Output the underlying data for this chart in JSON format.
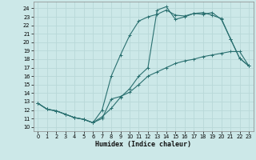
{
  "xlabel": "Humidex (Indice chaleur)",
  "bg_color": "#cce8e8",
  "grid_color": "#b8d8d8",
  "line_color": "#2a7070",
  "xlim": [
    -0.5,
    23.5
  ],
  "ylim": [
    9.5,
    24.8
  ],
  "xticks": [
    0,
    1,
    2,
    3,
    4,
    5,
    6,
    7,
    8,
    9,
    10,
    11,
    12,
    13,
    14,
    15,
    16,
    17,
    18,
    19,
    20,
    21,
    22,
    23
  ],
  "yticks": [
    10,
    11,
    12,
    13,
    14,
    15,
    16,
    17,
    18,
    19,
    20,
    21,
    22,
    23,
    24
  ],
  "line1_x": [
    0,
    1,
    2,
    3,
    4,
    5,
    6,
    7,
    8,
    9,
    10,
    11,
    12,
    13,
    14,
    15,
    16,
    17,
    18,
    19,
    20,
    21,
    22,
    23
  ],
  "line1_y": [
    12.8,
    12.1,
    11.9,
    11.5,
    11.1,
    10.9,
    10.5,
    11.0,
    13.3,
    13.6,
    14.1,
    15.0,
    16.0,
    16.5,
    17.0,
    17.5,
    17.8,
    18.0,
    18.3,
    18.5,
    18.7,
    18.9,
    18.9,
    17.2
  ],
  "line2_x": [
    0,
    1,
    2,
    3,
    4,
    5,
    6,
    7,
    8,
    9,
    10,
    11,
    12,
    13,
    14,
    15,
    16,
    17,
    18,
    19,
    20,
    21,
    22,
    23
  ],
  "line2_y": [
    12.8,
    12.1,
    11.9,
    11.5,
    11.1,
    10.9,
    10.5,
    12.0,
    16.0,
    18.5,
    20.8,
    22.5,
    23.0,
    23.3,
    23.8,
    23.2,
    23.1,
    23.4,
    23.3,
    23.5,
    22.7,
    20.4,
    18.1,
    17.2
  ],
  "line3_x": [
    0,
    1,
    2,
    3,
    4,
    5,
    6,
    7,
    8,
    9,
    10,
    11,
    12,
    13,
    14,
    15,
    16,
    17,
    18,
    19,
    20,
    21,
    22,
    23
  ],
  "line3_y": [
    12.8,
    12.1,
    11.9,
    11.5,
    11.1,
    10.9,
    10.5,
    11.2,
    12.2,
    13.5,
    14.5,
    16.0,
    17.0,
    23.8,
    24.2,
    22.7,
    23.0,
    23.4,
    23.5,
    23.2,
    22.8,
    20.4,
    18.1,
    17.2
  ]
}
